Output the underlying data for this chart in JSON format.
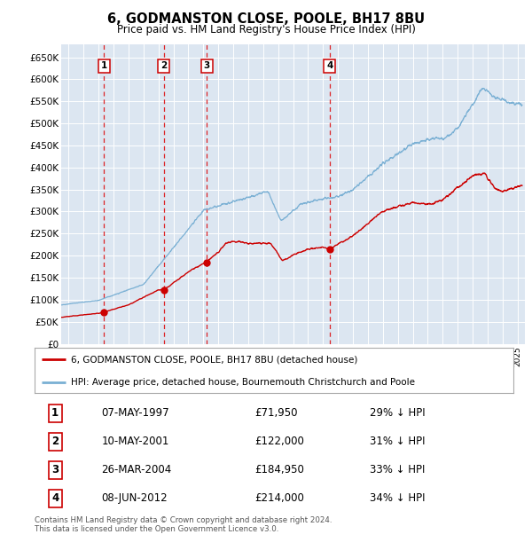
{
  "title": "6, GODMANSTON CLOSE, POOLE, BH17 8BU",
  "subtitle": "Price paid vs. HM Land Registry's House Price Index (HPI)",
  "transactions": [
    {
      "label": "1",
      "date": "1997-05-07",
      "price": 71950,
      "x_year": 1997.37
    },
    {
      "label": "2",
      "date": "2001-05-10",
      "price": 122000,
      "x_year": 2001.36
    },
    {
      "label": "3",
      "date": "2004-03-26",
      "price": 184950,
      "x_year": 2004.23
    },
    {
      "label": "4",
      "date": "2012-06-08",
      "price": 214000,
      "x_year": 2012.44
    }
  ],
  "transaction_table": [
    {
      "num": "1",
      "date": "07-MAY-1997",
      "price": "£71,950",
      "note": "29% ↓ HPI"
    },
    {
      "num": "2",
      "date": "10-MAY-2001",
      "price": "£122,000",
      "note": "31% ↓ HPI"
    },
    {
      "num": "3",
      "date": "26-MAR-2004",
      "price": "£184,950",
      "note": "33% ↓ HPI"
    },
    {
      "num": "4",
      "date": "08-JUN-2012",
      "price": "£214,000",
      "note": "34% ↓ HPI"
    }
  ],
  "legend_house": "6, GODMANSTON CLOSE, POOLE, BH17 8BU (detached house)",
  "legend_hpi": "HPI: Average price, detached house, Bournemouth Christchurch and Poole",
  "footer": "Contains HM Land Registry data © Crown copyright and database right 2024.\nThis data is licensed under the Open Government Licence v3.0.",
  "house_color": "#cc0000",
  "hpi_color": "#7ab0d4",
  "plot_bg": "#dce6f1",
  "ylim": [
    0,
    680000
  ],
  "xlim_start": 1994.5,
  "xlim_end": 2025.5,
  "yticks": [
    0,
    50000,
    100000,
    150000,
    200000,
    250000,
    300000,
    350000,
    400000,
    450000,
    500000,
    550000,
    600000,
    650000
  ],
  "ytick_labels": [
    "£0",
    "£50K",
    "£100K",
    "£150K",
    "£200K",
    "£250K",
    "£300K",
    "£350K",
    "£400K",
    "£450K",
    "£500K",
    "£550K",
    "£600K",
    "£650K"
  ]
}
